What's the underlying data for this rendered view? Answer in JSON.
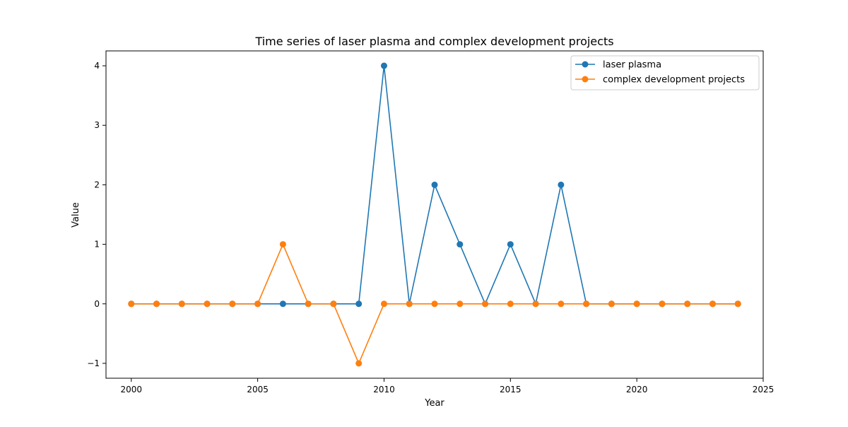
{
  "chart_data": {
    "type": "line",
    "title": "Time series of laser plasma and complex development projects",
    "xlabel": "Year",
    "ylabel": "Value",
    "xlim": [
      1999,
      2025
    ],
    "ylim": [
      -1.25,
      4.25
    ],
    "xticks": [
      2000,
      2005,
      2010,
      2015,
      2020,
      2025
    ],
    "yticks": [
      -1,
      0,
      1,
      2,
      3,
      4
    ],
    "xtick_labels": [
      "2000",
      "2005",
      "2010",
      "2015",
      "2020",
      "2025"
    ],
    "ytick_labels": [
      "−1",
      "0",
      "1",
      "2",
      "3",
      "4"
    ],
    "legend_position": "top-right",
    "grid": false,
    "x": [
      2000,
      2001,
      2002,
      2003,
      2004,
      2005,
      2006,
      2007,
      2008,
      2009,
      2010,
      2011,
      2012,
      2013,
      2014,
      2015,
      2016,
      2017,
      2018,
      2019,
      2020,
      2021,
      2022,
      2023,
      2024
    ],
    "series": [
      {
        "name": "laser plasma",
        "color": "#1f77b4",
        "marker": "circle",
        "values": [
          0,
          0,
          0,
          0,
          0,
          0,
          0,
          0,
          0,
          0,
          4,
          0,
          2,
          1,
          0,
          1,
          0,
          2,
          0,
          0,
          0,
          0,
          0,
          0,
          0
        ]
      },
      {
        "name": "complex development projects",
        "color": "#ff7f0e",
        "marker": "circle",
        "values": [
          0,
          0,
          0,
          0,
          0,
          0,
          1,
          0,
          0,
          -1,
          0,
          0,
          0,
          0,
          0,
          0,
          0,
          0,
          0,
          0,
          0,
          0,
          0,
          0,
          0
        ]
      }
    ]
  }
}
